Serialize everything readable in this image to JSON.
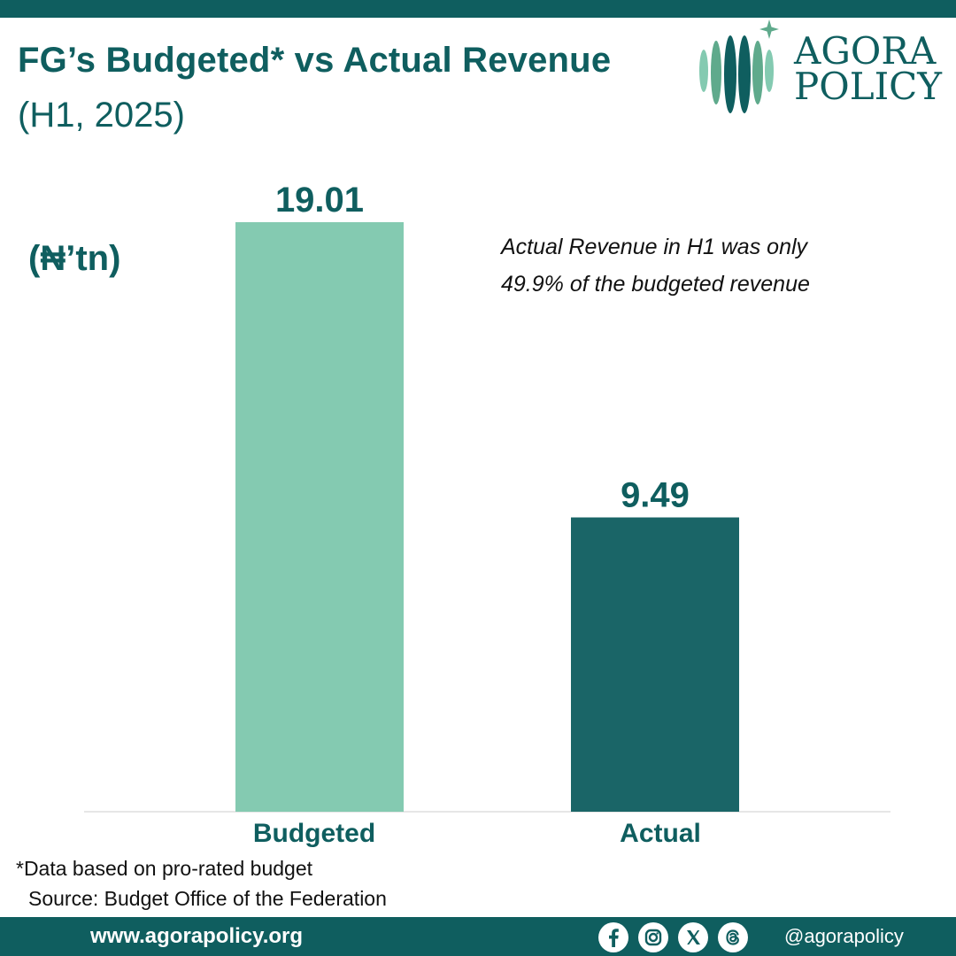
{
  "header": {
    "title": "FG’s Budgeted* vs Actual Revenue",
    "subtitle": "(H1, 2025)"
  },
  "logo": {
    "line1": "AGORA",
    "line2": "POLICY"
  },
  "chart_data": {
    "type": "bar",
    "categories": [
      "Budgeted",
      "Actual"
    ],
    "values": [
      19.01,
      9.49
    ],
    "value_labels": [
      "19.01",
      "9.49"
    ],
    "title": "FG’s Budgeted* vs Actual Revenue (H1, 2025)",
    "ylabel": "(₦’tn)",
    "xlabel": "",
    "ylim": [
      0,
      19.01
    ],
    "grid": false,
    "bar_colors": [
      "#84cab1",
      "#1a6567"
    ],
    "annotation": [
      "Actual Revenue in H1 was only",
      "49.9% of the budgeted revenue"
    ]
  },
  "footnote": {
    "note": "*Data based on pro-rated budget",
    "source": "Source: Budget Office of the Federation"
  },
  "footer": {
    "website": "www.agorapolicy.org",
    "handle": "@agorapolicy",
    "socials": [
      "facebook-icon",
      "instagram-icon",
      "x-icon",
      "threads-icon"
    ]
  },
  "colors": {
    "brand": "#0f5e5f",
    "budgeted": "#84cab1",
    "actual": "#1a6567"
  }
}
